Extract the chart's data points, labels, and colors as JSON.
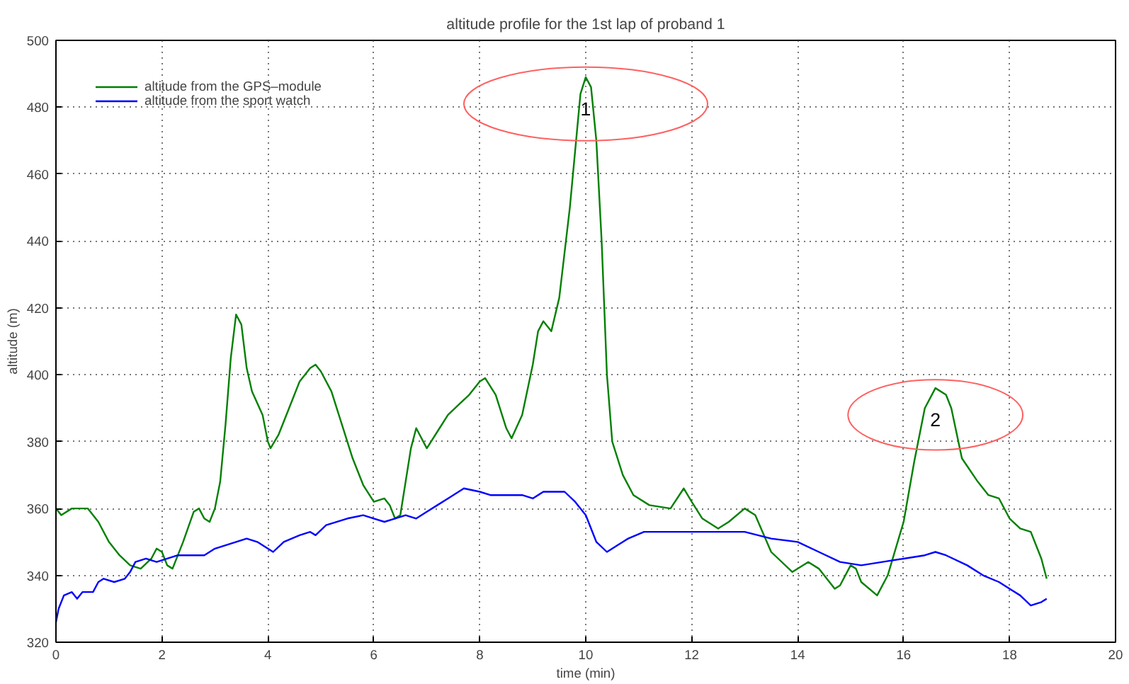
{
  "chart_data": {
    "type": "line",
    "title": "altitude profile for the 1st lap of proband 1",
    "xlabel": "time (min)",
    "ylabel": "altitude (m)",
    "xlim": [
      0,
      20
    ],
    "xticks": [
      0,
      2,
      4,
      6,
      8,
      10,
      12,
      14,
      16,
      18,
      20
    ],
    "ylim": [
      320,
      500
    ],
    "yticks": [
      320,
      340,
      360,
      380,
      400,
      420,
      440,
      460,
      480,
      500
    ],
    "grid": true,
    "legend": "top left",
    "marker": "none",
    "line_style": "solid",
    "annotations": [
      {
        "text": "1",
        "x": 10,
        "y": 489
      },
      {
        "text": "2",
        "x": 16.6,
        "y": 396
      }
    ],
    "series": [
      {
        "name": "altitude from the GPS–module",
        "color": "#008000",
        "x": [
          0,
          0.1,
          0.3,
          0.6,
          0.8,
          1.0,
          1.2,
          1.4,
          1.6,
          1.8,
          1.9,
          2.0,
          2.1,
          2.2,
          2.4,
          2.6,
          2.7,
          2.8,
          2.9,
          3.0,
          3.1,
          3.2,
          3.3,
          3.4,
          3.5,
          3.6,
          3.7,
          3.9,
          4.0,
          4.05,
          4.2,
          4.4,
          4.6,
          4.8,
          4.9,
          5.0,
          5.2,
          5.4,
          5.6,
          5.8,
          6.0,
          6.2,
          6.3,
          6.4,
          6.5,
          6.7,
          6.8,
          7.0,
          7.2,
          7.4,
          7.6,
          7.8,
          8.0,
          8.1,
          8.3,
          8.5,
          8.6,
          8.8,
          9.0,
          9.1,
          9.2,
          9.35,
          9.5,
          9.7,
          9.9,
          10.0,
          10.1,
          10.2,
          10.3,
          10.4,
          10.5,
          10.7,
          10.9,
          11.2,
          11.6,
          11.85,
          12.0,
          12.2,
          12.5,
          12.7,
          13.0,
          13.2,
          13.5,
          13.9,
          14.2,
          14.4,
          14.7,
          14.8,
          15.0,
          15.1,
          15.2,
          15.5,
          15.7,
          16.0,
          16.2,
          16.4,
          16.6,
          16.8,
          16.9,
          17.1,
          17.4,
          17.6,
          17.8,
          18.0,
          18.2,
          18.4,
          18.6,
          18.7
        ],
        "values": [
          360,
          358,
          360,
          360,
          356,
          350,
          346,
          343,
          342,
          345,
          348,
          347,
          343,
          342,
          350,
          359,
          360,
          357,
          356,
          360,
          368,
          385,
          405,
          418,
          415,
          402,
          395,
          388,
          380,
          378,
          382,
          390,
          398,
          402,
          403,
          401,
          395,
          385,
          375,
          367,
          362,
          363,
          361,
          357,
          358,
          378,
          384,
          378,
          383,
          388,
          391,
          394,
          398,
          399,
          394,
          384,
          381,
          388,
          403,
          413,
          416,
          413,
          423,
          450,
          484,
          489,
          486,
          470,
          440,
          400,
          380,
          370,
          364,
          361,
          360,
          366,
          362,
          357,
          354,
          356,
          360,
          358,
          347,
          341,
          344,
          342,
          336,
          337,
          343,
          342,
          338,
          334,
          340,
          356,
          374,
          390,
          396,
          394,
          390,
          375,
          368,
          364,
          363,
          357,
          354,
          353,
          345,
          339
        ]
      },
      {
        "name": "altitude from the sport watch",
        "color": "#0000ff",
        "x": [
          0,
          0.05,
          0.15,
          0.3,
          0.4,
          0.5,
          0.7,
          0.8,
          0.9,
          1.1,
          1.3,
          1.4,
          1.5,
          1.7,
          1.9,
          2.1,
          2.3,
          2.5,
          2.8,
          3.0,
          3.2,
          3.4,
          3.6,
          3.8,
          4.0,
          4.1,
          4.3,
          4.6,
          4.8,
          4.9,
          5.1,
          5.5,
          5.8,
          6.0,
          6.2,
          6.4,
          6.6,
          6.8,
          7.0,
          7.2,
          7.4,
          7.7,
          8.0,
          8.2,
          8.5,
          8.8,
          9.0,
          9.2,
          9.6,
          9.8,
          10.0,
          10.2,
          10.4,
          10.6,
          10.8,
          11.1,
          11.5,
          12.0,
          12.5,
          13.0,
          13.5,
          14.0,
          14.4,
          14.8,
          15.2,
          15.6,
          16.0,
          16.4,
          16.6,
          16.8,
          17.2,
          17.5,
          17.8,
          18.0,
          18.2,
          18.4,
          18.6,
          18.7
        ],
        "values": [
          326,
          330,
          334,
          335,
          333,
          335,
          335,
          338,
          339,
          338,
          339,
          341,
          344,
          345,
          344,
          345,
          346,
          346,
          346,
          348,
          349,
          350,
          351,
          350,
          348,
          347,
          350,
          352,
          353,
          352,
          355,
          357,
          358,
          357,
          356,
          357,
          358,
          357,
          359,
          361,
          363,
          366,
          365,
          364,
          364,
          364,
          363,
          365,
          365,
          362,
          358,
          350,
          347,
          349,
          351,
          353,
          353,
          353,
          353,
          353,
          351,
          350,
          347,
          344,
          343,
          344,
          345,
          346,
          347,
          346,
          343,
          340,
          338,
          336,
          334,
          331,
          332,
          333
        ]
      }
    ]
  }
}
